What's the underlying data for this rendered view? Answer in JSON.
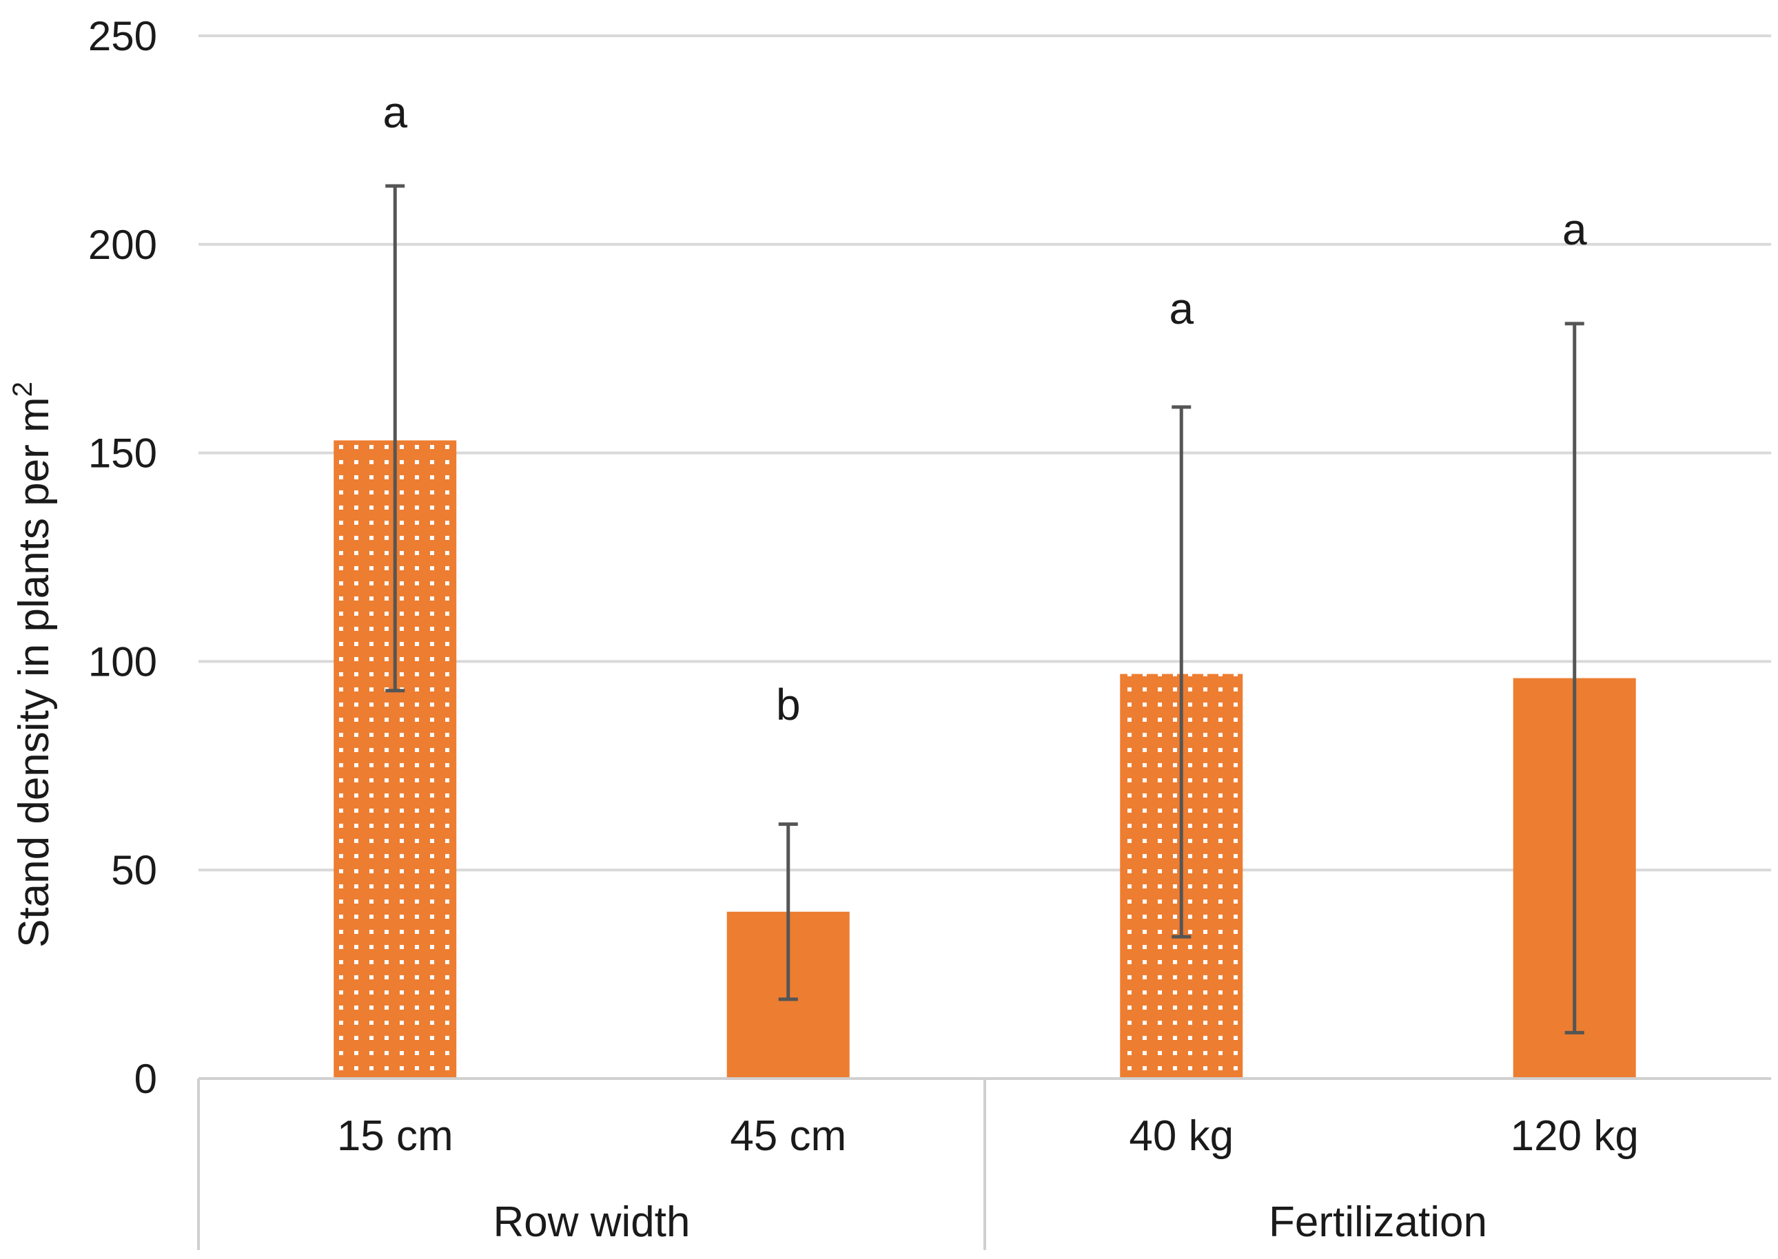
{
  "chart_data": {
    "type": "bar",
    "title": "",
    "xlabel": "",
    "ylabel": "Stand density in plants per m",
    "ylabel_superscript": "2",
    "ylim": [
      0,
      250
    ],
    "yticks": [
      0,
      50,
      100,
      150,
      200,
      250
    ],
    "grid": true,
    "color": "#ED7D31",
    "categories": [
      "15 cm",
      "45 cm",
      "40 kg",
      "120 kg"
    ],
    "groups": [
      {
        "label": "Row width",
        "categories": [
          "15 cm",
          "45 cm"
        ]
      },
      {
        "label": "Fertilization",
        "categories": [
          "40 kg",
          "120 kg"
        ]
      }
    ],
    "values": [
      153,
      40,
      97,
      96
    ],
    "error_low": [
      93,
      19,
      34,
      11
    ],
    "error_high": [
      214,
      61,
      161,
      181
    ],
    "patterns": [
      "dotted",
      "solid",
      "dotted",
      "solid"
    ],
    "significance": [
      "a",
      "b",
      "a",
      "a"
    ],
    "significance_y": [
      228,
      86,
      181,
      200
    ]
  }
}
